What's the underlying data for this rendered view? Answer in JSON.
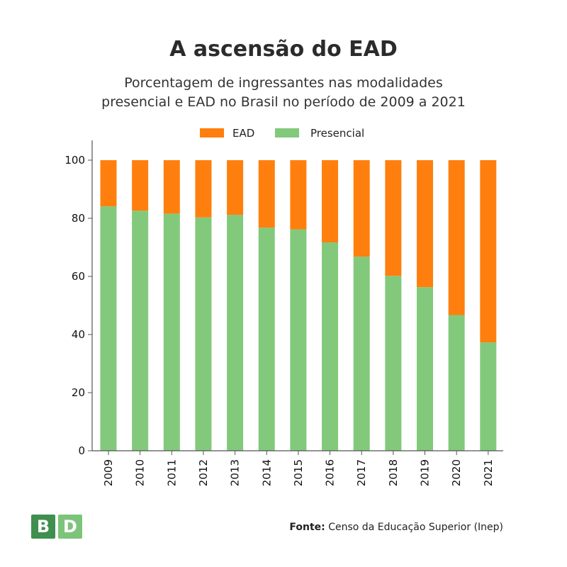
{
  "title": "A ascensão do EAD",
  "subtitle_lines": [
    "Porcentagem  de ingressantes nas modalidades",
    "presencial e EAD no Brasil no período de 2009 a 2021"
  ],
  "logo": {
    "letter1": "B",
    "letter2": "D"
  },
  "source": {
    "label": "Fonte:",
    "text": "Censo da Educação Superior (Inep)"
  },
  "colors": {
    "ead": "#ff7f0e",
    "presencial": "#82c97c",
    "axis": "#555555"
  },
  "chart_data": {
    "type": "bar",
    "stacked": true,
    "categories": [
      "2009",
      "2010",
      "2011",
      "2012",
      "2013",
      "2014",
      "2015",
      "2016",
      "2017",
      "2018",
      "2019",
      "2020",
      "2021"
    ],
    "series": [
      {
        "name": "Presencial",
        "values": [
          84.1,
          82.6,
          81.6,
          80.3,
          81.2,
          76.8,
          76.2,
          71.7,
          66.8,
          60.2,
          56.3,
          46.7,
          37.3
        ]
      },
      {
        "name": "EAD",
        "values": [
          15.9,
          17.4,
          18.4,
          19.7,
          18.8,
          23.2,
          23.8,
          28.3,
          33.2,
          39.8,
          43.7,
          53.3,
          62.7
        ]
      }
    ],
    "legend": [
      "EAD",
      "Presencial"
    ],
    "yticks": [
      0,
      20,
      40,
      60,
      80,
      100
    ],
    "ylim": [
      0,
      100
    ],
    "grid": false,
    "legend_position": "top-center"
  }
}
